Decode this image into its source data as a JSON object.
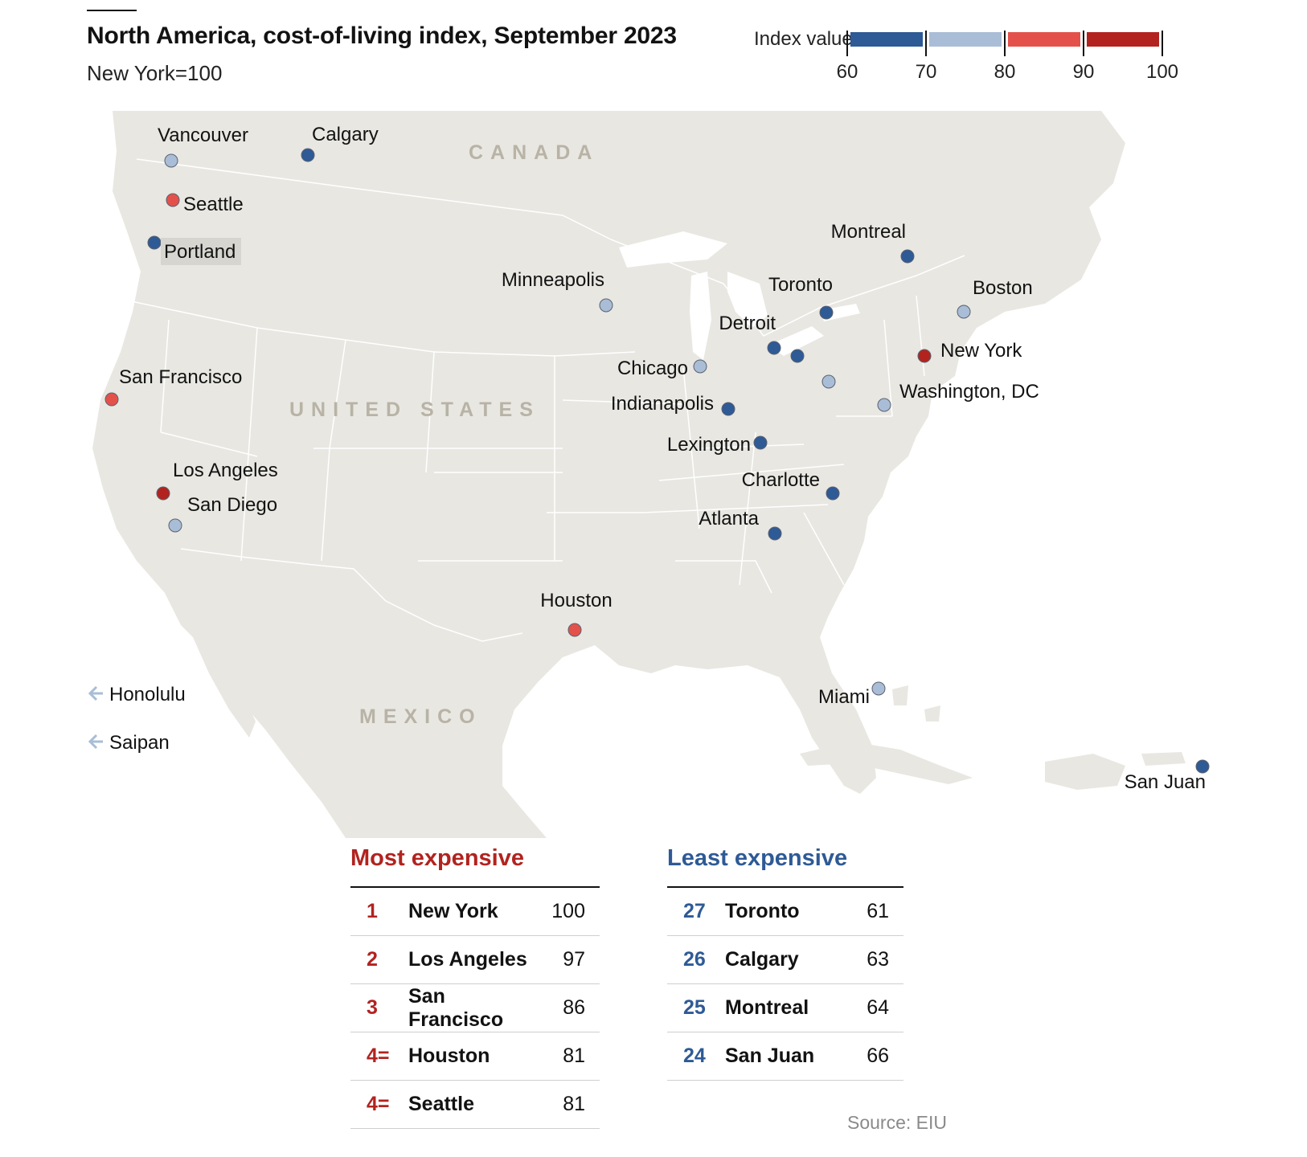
{
  "header": {
    "title": "North America, cost-of-living index, September 2023",
    "subtitle": "New York=100"
  },
  "legend": {
    "title": "Index value",
    "ticks": [
      "60",
      "70",
      "80",
      "90",
      "100"
    ],
    "bins": [
      {
        "range": [
          60,
          70
        ],
        "color": "#2e5a96"
      },
      {
        "range": [
          70,
          80
        ],
        "color": "#a9bdd6"
      },
      {
        "range": [
          80,
          90
        ],
        "color": "#e4514a"
      },
      {
        "range": [
          90,
          100
        ],
        "color": "#b2231f"
      }
    ]
  },
  "map": {
    "country_labels": [
      "CANADA",
      "UNITED STATES",
      "MEXICO"
    ],
    "land_color": "#e8e7e2",
    "border_color": "#ffffff",
    "offmap": [
      {
        "name": "Honolulu",
        "color": "#a9bdd6"
      },
      {
        "name": "Saipan",
        "color": "#a9bdd6"
      }
    ],
    "cities": [
      {
        "name": "Vancouver",
        "bin": 1
      },
      {
        "name": "Calgary",
        "bin": 0
      },
      {
        "name": "Seattle",
        "bin": 2
      },
      {
        "name": "Portland",
        "bin": 0
      },
      {
        "name": "San Francisco",
        "bin": 2
      },
      {
        "name": "Los Angeles",
        "bin": 3
      },
      {
        "name": "San Diego",
        "bin": 1
      },
      {
        "name": "Minneapolis",
        "bin": 1
      },
      {
        "name": "Chicago",
        "bin": 1
      },
      {
        "name": "Detroit",
        "bin": 0
      },
      {
        "name": "Toronto",
        "bin": 0
      },
      {
        "name": "Montreal",
        "bin": 0
      },
      {
        "name": "Boston",
        "bin": 1
      },
      {
        "name": "New York",
        "bin": 3
      },
      {
        "name": "Washington, DC",
        "bin": 1
      },
      {
        "name": "Indianapolis",
        "bin": 0
      },
      {
        "name": "Lexington",
        "bin": 0
      },
      {
        "name": "Charlotte",
        "bin": 0
      },
      {
        "name": "Atlanta",
        "bin": 0
      },
      {
        "name": "Houston",
        "bin": 2
      },
      {
        "name": "Miami",
        "bin": 1
      },
      {
        "name": "San Juan",
        "bin": 0
      },
      {
        "name": "",
        "bin": 0
      },
      {
        "name": "",
        "bin": 1
      }
    ]
  },
  "most_expensive": {
    "heading": "Most expensive",
    "color": "#b2231f",
    "rows": [
      {
        "rank": "1",
        "city": "New York",
        "value": "100"
      },
      {
        "rank": "2",
        "city": "Los Angeles",
        "value": "97"
      },
      {
        "rank": "3",
        "city": "San Francisco",
        "value": "86"
      },
      {
        "rank": "4=",
        "city": "Houston",
        "value": "81"
      },
      {
        "rank": "4=",
        "city": "Seattle",
        "value": "81"
      }
    ]
  },
  "least_expensive": {
    "heading": "Least expensive",
    "color": "#2e5a96",
    "rows": [
      {
        "rank": "27",
        "city": "Toronto",
        "value": "61"
      },
      {
        "rank": "26",
        "city": "Calgary",
        "value": "63"
      },
      {
        "rank": "25",
        "city": "Montreal",
        "value": "64"
      },
      {
        "rank": "24",
        "city": "San Juan",
        "value": "66"
      }
    ]
  },
  "source": "Source: EIU"
}
